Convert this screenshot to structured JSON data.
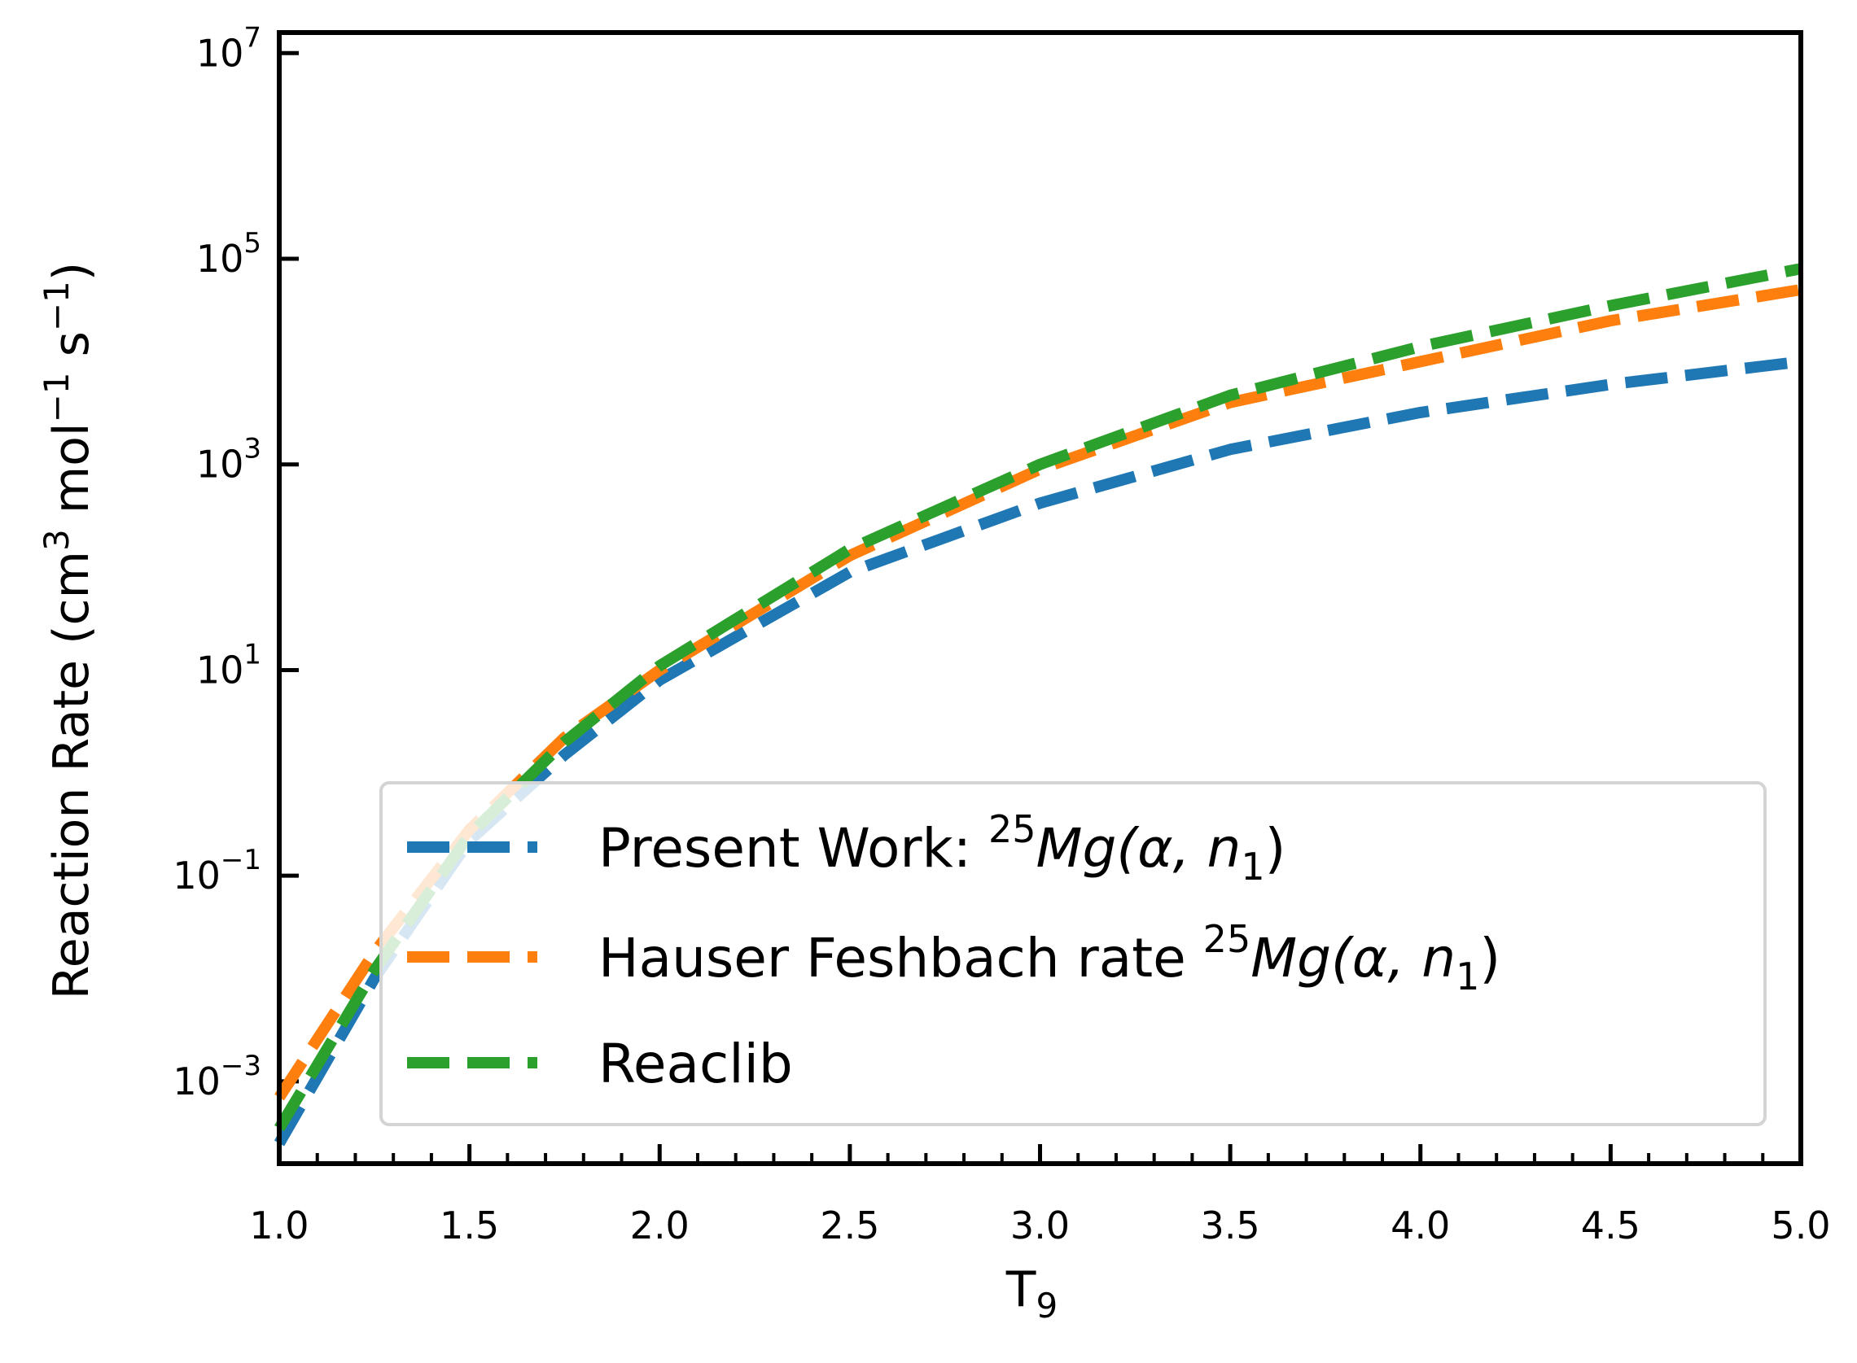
{
  "chart_data": {
    "type": "line",
    "xlabel": "T",
    "xlabel_subscript": "9",
    "ylabel": "Reaction Rate (cm",
    "ylabel_parts": [
      "Reaction Rate (cm",
      "3",
      " mol",
      "−1",
      " s",
      "−1",
      ")"
    ],
    "xlim": [
      1.0,
      5.0
    ],
    "ylim_log10": [
      -3.8,
      7.2
    ],
    "y_scale": "log",
    "grid": false,
    "legend_position": "lower-right",
    "x_ticks": [
      1.0,
      1.5,
      2.0,
      2.5,
      3.0,
      3.5,
      4.0,
      4.5,
      5.0
    ],
    "x_tick_labels": [
      "1.0",
      "1.5",
      "2.0",
      "2.5",
      "3.0",
      "3.5",
      "4.0",
      "4.5",
      "5.0"
    ],
    "y_ticks_log10": [
      -3,
      -1,
      1,
      3,
      5,
      7
    ],
    "y_tick_labels": [
      {
        "base": "10",
        "exp": "−3"
      },
      {
        "base": "10",
        "exp": "−1"
      },
      {
        "base": "10",
        "exp": "1"
      },
      {
        "base": "10",
        "exp": "3"
      },
      {
        "base": "10",
        "exp": "5"
      },
      {
        "base": "10",
        "exp": "7"
      }
    ],
    "series": [
      {
        "name": "Present Work: ",
        "label_sup": "25",
        "label_math": "Mg(α, n",
        "label_sub": "1",
        "label_close": ")",
        "color": "#1f77b4",
        "x": [
          1.0,
          1.25,
          1.5,
          1.75,
          2.0,
          2.5,
          3.0,
          3.5,
          4.0,
          4.5,
          5.0
        ],
        "y": [
          0.00025,
          0.01,
          0.22,
          1.5,
          8,
          90,
          420,
          1400,
          3200,
          6000,
          10000
        ]
      },
      {
        "name": "Hauser Feshbach rate ",
        "label_sup": "25",
        "label_math": "Mg(α, n",
        "label_sub": "1",
        "label_close": ")",
        "color": "#ff7f0e",
        "x": [
          1.0,
          1.25,
          1.5,
          1.75,
          2.0,
          2.5,
          3.0,
          3.5,
          4.0,
          4.5,
          5.0
        ],
        "y": [
          0.0007,
          0.018,
          0.28,
          2.2,
          10,
          130,
          900,
          4000,
          10000,
          25000,
          50000
        ]
      },
      {
        "name": "Reaclib",
        "label_sup": "",
        "label_math": "",
        "label_sub": "",
        "label_close": "",
        "color": "#2ca02c",
        "x": [
          1.0,
          1.25,
          1.5,
          1.75,
          2.0,
          2.5,
          3.0,
          3.5,
          4.0,
          4.5,
          5.0
        ],
        "y": [
          0.00035,
          0.012,
          0.25,
          2.0,
          11,
          150,
          1000,
          4700,
          14000,
          35000,
          80000
        ]
      }
    ]
  }
}
